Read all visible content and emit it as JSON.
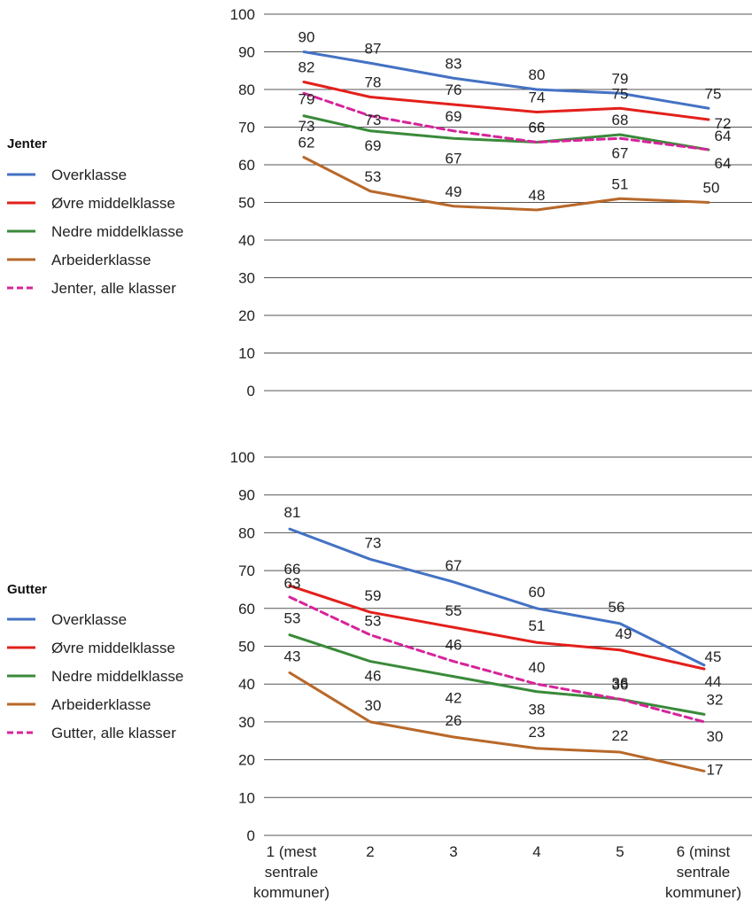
{
  "chart_data": [
    {
      "type": "line",
      "legend_title": "Jenter",
      "categories": [
        "1 (mest sentrale kommuner)",
        "2",
        "3",
        "4",
        "5",
        "6 (minst sentrale kommuner)"
      ],
      "ylim": [
        0,
        100
      ],
      "yticks": [
        0,
        10,
        20,
        30,
        40,
        50,
        60,
        70,
        80,
        90,
        100
      ],
      "grid": true,
      "legend_position": "left",
      "series": [
        {
          "name": "Overklasse",
          "color": "#4472c4",
          "dashed": false,
          "values": [
            90,
            87,
            83,
            80,
            79,
            75
          ]
        },
        {
          "name": "Øvre middelklasse",
          "color": "#e3201b",
          "dashed": false,
          "values": [
            82,
            78,
            76,
            74,
            75,
            72
          ]
        },
        {
          "name": "Nedre middelklasse",
          "color": "#3a8a3a",
          "dashed": false,
          "values": [
            73,
            69,
            67,
            66,
            68,
            64
          ]
        },
        {
          "name": "Arbeiderklasse",
          "color": "#b8682a",
          "dashed": false,
          "values": [
            62,
            53,
            49,
            48,
            51,
            50
          ]
        },
        {
          "name": "Jenter, alle klasser",
          "color": "#d6249a",
          "dashed": true,
          "values": [
            79,
            73,
            69,
            66,
            67,
            64
          ]
        }
      ]
    },
    {
      "type": "line",
      "legend_title": "Gutter",
      "categories": [
        "1 (mest sentrale kommuner)",
        "2",
        "3",
        "4",
        "5",
        "6 (minst sentrale kommuner)"
      ],
      "ylim": [
        0,
        100
      ],
      "yticks": [
        0,
        10,
        20,
        30,
        40,
        50,
        60,
        70,
        80,
        90,
        100
      ],
      "grid": true,
      "legend_position": "left",
      "x_tick_labels": [
        [
          "1 (mest",
          "sentrale",
          "kommuner)"
        ],
        [
          "2"
        ],
        [
          "3"
        ],
        [
          "4"
        ],
        [
          "5"
        ],
        [
          "6 (minst",
          "sentrale",
          "kommuner)"
        ]
      ],
      "series": [
        {
          "name": "Overklasse",
          "color": "#4472c4",
          "dashed": false,
          "values": [
            81,
            73,
            67,
            60,
            56,
            45
          ]
        },
        {
          "name": "Øvre middelklasse",
          "color": "#e3201b",
          "dashed": false,
          "values": [
            66,
            59,
            55,
            51,
            49,
            44
          ]
        },
        {
          "name": "Nedre middelklasse",
          "color": "#3a8a3a",
          "dashed": false,
          "values": [
            53,
            46,
            42,
            38,
            36,
            32
          ]
        },
        {
          "name": "Arbeiderklasse",
          "color": "#b8682a",
          "dashed": false,
          "values": [
            43,
            30,
            26,
            23,
            22,
            17
          ]
        },
        {
          "name": "Gutter, alle klasser",
          "color": "#d6249a",
          "dashed": true,
          "values": [
            63,
            53,
            46,
            40,
            36,
            30
          ]
        }
      ]
    }
  ]
}
